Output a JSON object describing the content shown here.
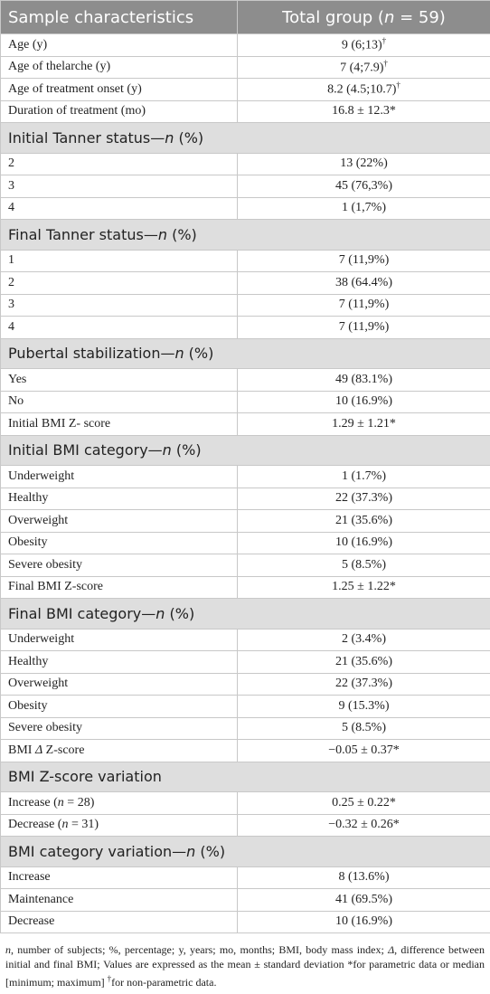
{
  "table": {
    "header": [
      "Sample characteristics",
      [
        {
          "text": "Total group ("
        },
        {
          "text": "n",
          "italic": true
        },
        {
          "text": " = 59)"
        }
      ]
    ],
    "rows": [
      {
        "label": "Age (y)",
        "value": [
          {
            "text": "9 (6;13)"
          },
          {
            "text": "†",
            "sup": true
          }
        ]
      },
      {
        "label": "Age of thelarche (y)",
        "value": [
          {
            "text": "7 (4;7.9)"
          },
          {
            "text": "†",
            "sup": true
          }
        ]
      },
      {
        "label": "Age of treatment onset (y)",
        "value": [
          {
            "text": "8.2 (4.5;10.7)"
          },
          {
            "text": "†",
            "sup": true
          }
        ]
      },
      {
        "label": "Duration of treatment (mo)",
        "value": "16.8 ± 12.3*"
      },
      {
        "section": [
          {
            "text": "Initial Tanner status—"
          },
          {
            "text": "n",
            "italic": true
          },
          {
            "text": " (%)"
          }
        ]
      },
      {
        "label": "2",
        "value": "13 (22%)"
      },
      {
        "label": "3",
        "value": "45 (76,3%)"
      },
      {
        "label": "4",
        "value": "1 (1,7%)"
      },
      {
        "section": [
          {
            "text": "Final Tanner status—"
          },
          {
            "text": "n",
            "italic": true
          },
          {
            "text": " (%)"
          }
        ]
      },
      {
        "label": "1",
        "value": "7 (11,9%)"
      },
      {
        "label": "2",
        "value": "38 (64.4%)"
      },
      {
        "label": "3",
        "value": "7 (11,9%)"
      },
      {
        "label": "4",
        "value": "7 (11,9%)"
      },
      {
        "section": [
          {
            "text": "Pubertal stabilization—"
          },
          {
            "text": "n",
            "italic": true
          },
          {
            "text": " (%)"
          }
        ]
      },
      {
        "label": "Yes",
        "value": "49 (83.1%)"
      },
      {
        "label": "No",
        "value": "10 (16.9%)"
      },
      {
        "label": "Initial BMI Z- score",
        "value": "1.29 ± 1.21*"
      },
      {
        "section": [
          {
            "text": "Initial BMI category—"
          },
          {
            "text": "n",
            "italic": true
          },
          {
            "text": " (%)"
          }
        ]
      },
      {
        "label": "Underweight",
        "value": "1 (1.7%)"
      },
      {
        "label": "Healthy",
        "value": "22 (37.3%)"
      },
      {
        "label": "Overweight",
        "value": "21 (35.6%)"
      },
      {
        "label": "Obesity",
        "value": "10 (16.9%)"
      },
      {
        "label": "Severe obesity",
        "value": "5 (8.5%)"
      },
      {
        "label": "Final BMI Z-score",
        "value": "1.25 ± 1.22*"
      },
      {
        "section": [
          {
            "text": "Final BMI category—"
          },
          {
            "text": "n",
            "italic": true
          },
          {
            "text": " (%)"
          }
        ]
      },
      {
        "label": "Underweight",
        "value": "2 (3.4%)"
      },
      {
        "label": "Healthy",
        "value": "21 (35.6%)"
      },
      {
        "label": "Overweight",
        "value": "22 (37.3%)"
      },
      {
        "label": "Obesity",
        "value": "9 (15.3%)"
      },
      {
        "label": "Severe obesity",
        "value": "5 (8.5%)"
      },
      {
        "label": [
          {
            "text": "BMI "
          },
          {
            "text": "Δ",
            "italic": true
          },
          {
            "text": " Z-score"
          }
        ],
        "value": "−0.05 ± 0.37*"
      },
      {
        "section": "BMI Z-score variation"
      },
      {
        "label": [
          {
            "text": "Increase ("
          },
          {
            "text": "n",
            "italic": true
          },
          {
            "text": " = 28)"
          }
        ],
        "value": "0.25 ± 0.22*"
      },
      {
        "label": [
          {
            "text": "Decrease ("
          },
          {
            "text": "n",
            "italic": true
          },
          {
            "text": " = 31)"
          }
        ],
        "value": "−0.32 ± 0.26*"
      },
      {
        "section": [
          {
            "text": "BMI category variation—"
          },
          {
            "text": "n",
            "italic": true
          },
          {
            "text": " (%)"
          }
        ]
      },
      {
        "label": "Increase",
        "value": "8 (13.6%)"
      },
      {
        "label": "Maintenance",
        "value": "41 (69.5%)"
      },
      {
        "label": "Decrease",
        "value": "10 (16.9%)"
      }
    ],
    "footnote": [
      {
        "text": "n",
        "italic": true
      },
      {
        "text": ", number of subjects; %, percentage; y, years; mo, months; BMI, body mass index; "
      },
      {
        "text": "Δ",
        "italic": true
      },
      {
        "text": ", difference between initial and final BMI; Values are expressed as the mean ± standard deviation *for parametric data or median [minimum; maximum] "
      },
      {
        "text": "†",
        "sup": true
      },
      {
        "text": "for non-parametric data."
      }
    ]
  }
}
